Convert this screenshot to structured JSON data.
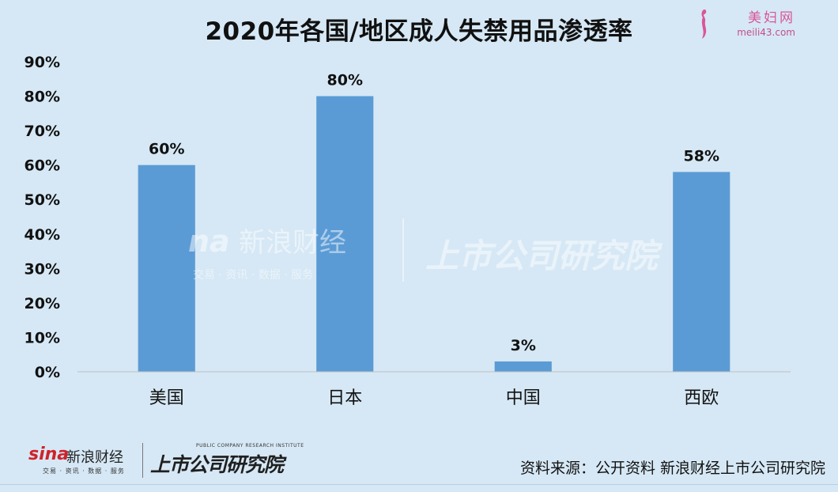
{
  "header": {
    "title": "2020年各国/地区成人失禁用品渗透率",
    "site_logo_name": "美妇网",
    "site_logo_url": "meili43.com"
  },
  "watermark": {
    "sina_text": "新浪财经",
    "sina_sub": "交易 · 资讯 · 数据 · 服务",
    "research_text": "上市公司研究院"
  },
  "footer": {
    "sina_word": "sina",
    "sina_cn": "新浪财经",
    "sina_sub": "交易 · 资讯 · 数据 · 服务",
    "research_cn": "上市公司研究院",
    "research_en": "PUBLIC COMPANY RESEARCH INSTITUTE",
    "source": "资料来源：公开资料  新浪财经上市公司研究院"
  },
  "colors": {
    "bar": "#5b9bd5",
    "background": "#d6e8f5"
  },
  "chart_data": {
    "type": "bar",
    "title": "2020年各国/地区成人失禁用品渗透率",
    "categories": [
      "美国",
      "日本",
      "中国",
      "西欧"
    ],
    "values": [
      60,
      80,
      3,
      58
    ],
    "value_labels": [
      "60%",
      "80%",
      "3%",
      "58%"
    ],
    "ylim": [
      0,
      90
    ],
    "yticks": [
      0,
      10,
      20,
      30,
      40,
      50,
      60,
      70,
      80,
      90
    ],
    "ytick_labels": [
      "0%",
      "10%",
      "20%",
      "30%",
      "40%",
      "50%",
      "60%",
      "70%",
      "80%",
      "90%"
    ],
    "xlabel": "",
    "ylabel": "",
    "grid": false,
    "legend": "none"
  }
}
